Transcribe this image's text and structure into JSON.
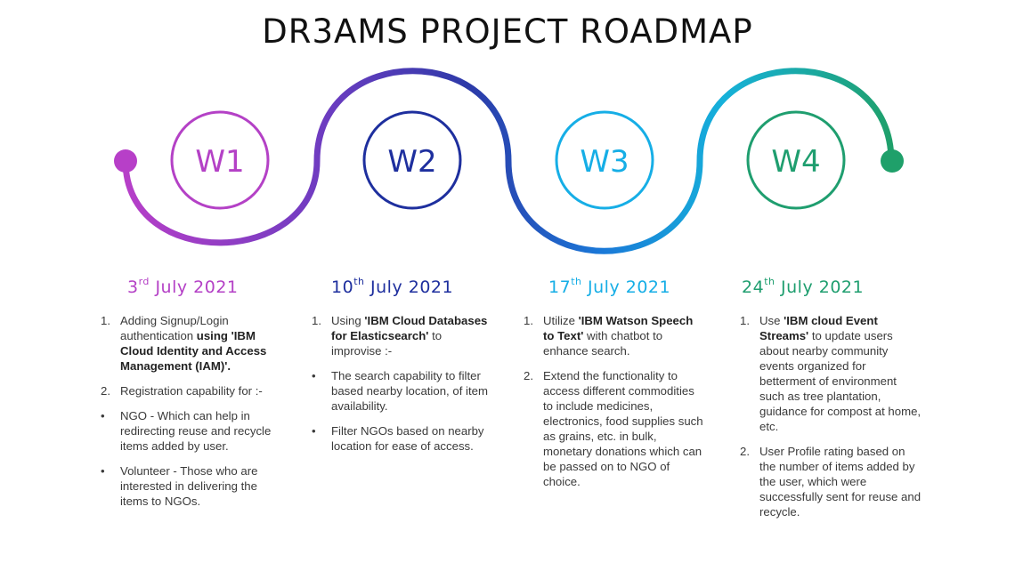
{
  "title": "DR3AMS PROJECT ROADMAP",
  "colors": {
    "w1": "#b441c6",
    "w2": "#1e2f9e",
    "w3": "#16aee6",
    "w4": "#1f9e6f"
  },
  "weeks": [
    {
      "label": "W1",
      "date_day": "3",
      "date_suffix": "rd",
      "date_rest": "July 2021",
      "items": [
        {
          "marker": "1.",
          "parts": [
            {
              "t": "Adding Signup/Login authentication "
            },
            {
              "b": "using 'IBM Cloud Identity and Access Management (IAM)'."
            }
          ]
        },
        {
          "marker": "2.",
          "parts": [
            {
              "t": "Registration capability for :-"
            }
          ]
        },
        {
          "marker": "•",
          "parts": [
            {
              "t": "NGO - Which can help in redirecting reuse and recycle items added by user."
            }
          ]
        },
        {
          "marker": "•",
          "parts": [
            {
              "t": "Volunteer - Those who are interested in delivering the items to NGOs."
            }
          ]
        }
      ]
    },
    {
      "label": "W2",
      "date_day": "10",
      "date_suffix": "th",
      "date_rest": "July 2021",
      "items": [
        {
          "marker": "1.",
          "parts": [
            {
              "t": "Using "
            },
            {
              "b": "'IBM Cloud Databases for Elasticsearch'"
            },
            {
              "t": " to improvise :-"
            }
          ]
        },
        {
          "marker": "•",
          "parts": [
            {
              "t": "The search capability to filter based nearby location, of item availability."
            }
          ]
        },
        {
          "marker": "•",
          "parts": [
            {
              "t": "Filter NGOs based on nearby location for ease of access."
            }
          ]
        }
      ]
    },
    {
      "label": "W3",
      "date_day": "17",
      "date_suffix": "th",
      "date_rest": "July 2021",
      "items": [
        {
          "marker": "1.",
          "parts": [
            {
              "t": "Utilize "
            },
            {
              "b": "'IBM Watson Speech to Text'"
            },
            {
              "t": " with chatbot to enhance search."
            }
          ]
        },
        {
          "marker": "2.",
          "parts": [
            {
              "t": "Extend the functionality to access different commodities to include medicines, electronics, food supplies such as grains, etc. in bulk, monetary donations which can be passed on to NGO of choice."
            }
          ]
        }
      ]
    },
    {
      "label": "W4",
      "date_day": "24",
      "date_suffix": "th",
      "date_rest": "July 2021",
      "items": [
        {
          "marker": "1.",
          "parts": [
            {
              "t": "Use "
            },
            {
              "b": "'IBM cloud Event Streams'"
            },
            {
              "t": " to update users about nearby community events organized for betterment of environment such as tree plantation, guidance for compost at home, etc."
            }
          ]
        },
        {
          "marker": "2.",
          "parts": [
            {
              "t": "User Profile rating  based on the number of items added by the user, which were successfully sent for reuse and recycle."
            }
          ]
        }
      ]
    }
  ]
}
